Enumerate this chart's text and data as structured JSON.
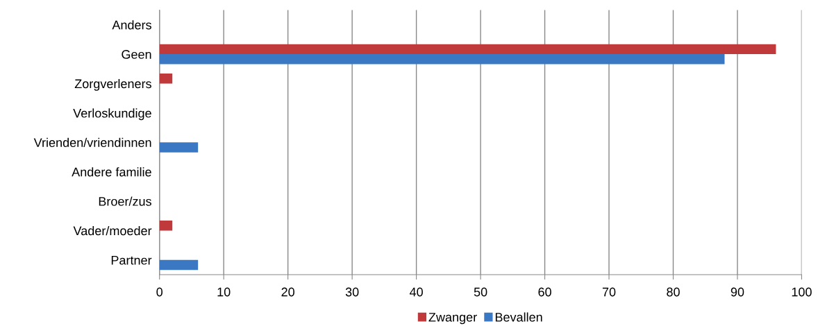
{
  "chart_data": {
    "type": "bar",
    "orientation": "horizontal",
    "categories": [
      "Anders",
      "Geen",
      "Zorgverleners",
      "Verloskundige",
      "Vrienden/vriendinnen",
      "Andere familie",
      "Broer/zus",
      "Vader/moeder",
      "Partner"
    ],
    "series": [
      {
        "name": "Zwanger",
        "color": "#c0393b",
        "values": [
          0,
          96,
          2,
          0,
          0,
          0,
          0,
          2,
          0
        ]
      },
      {
        "name": "Bevallen",
        "color": "#3a78c4",
        "values": [
          0,
          88,
          0,
          0,
          6,
          0,
          0,
          0,
          6
        ]
      }
    ],
    "xlim": [
      0,
      100
    ],
    "xticks": [
      0,
      10,
      20,
      30,
      40,
      50,
      60,
      70,
      80,
      90,
      100
    ],
    "grid": "x",
    "legend": "bottom"
  }
}
